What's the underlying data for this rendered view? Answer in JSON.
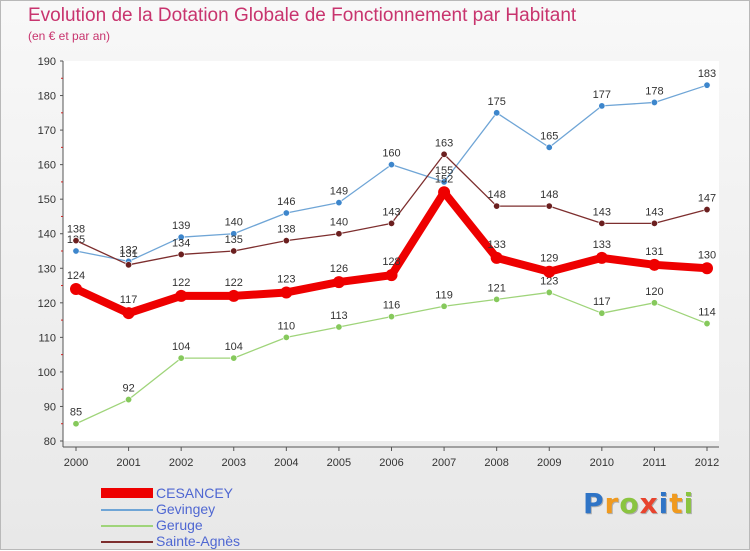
{
  "title": "Evolution de la Dotation Globale de Fonctionnement par Habitant",
  "subtitle": "(en € et par an)",
  "logo": {
    "text": "Proxiti",
    "letters": [
      {
        "ch": "P",
        "color": "#2f74c6"
      },
      {
        "ch": "r",
        "color": "#f09a1e"
      },
      {
        "ch": "o",
        "color": "#8ac43f"
      },
      {
        "ch": "x",
        "color": "#e8432d"
      },
      {
        "ch": "i",
        "color": "#2f74c6"
      },
      {
        "ch": "t",
        "color": "#f09a1e"
      },
      {
        "ch": "i",
        "color": "#8ac43f"
      }
    ]
  },
  "chart_data": {
    "type": "line",
    "title": "Evolution de la Dotation Globale de Fonctionnement par Habitant",
    "subtitle": "(en € et par an)",
    "xlabel": "",
    "ylabel": "",
    "x": [
      "2000",
      "2001",
      "2002",
      "2003",
      "2004",
      "2005",
      "2006",
      "2007",
      "2008",
      "2009",
      "2010",
      "2011",
      "2012"
    ],
    "ylim": [
      80,
      190
    ],
    "yticks": [
      80,
      90,
      100,
      110,
      120,
      130,
      140,
      150,
      160,
      170,
      180,
      190
    ],
    "grid": false,
    "legend_position": "bottom-left",
    "series": [
      {
        "name": "Gevingey",
        "color": "#6fa5d6",
        "marker": "#3d86cc",
        "values": [
          135,
          132,
          139,
          140,
          146,
          149,
          160,
          155,
          175,
          165,
          177,
          178,
          183
        ]
      },
      {
        "name": "Sainte-Agnès",
        "color": "#7d2e2e",
        "marker": "#6b1f1f",
        "values": [
          138,
          131,
          134,
          135,
          138,
          140,
          143,
          163,
          148,
          148,
          143,
          143,
          147
        ]
      },
      {
        "name": "Geruge",
        "color": "#9fd47a",
        "marker": "#86c95c",
        "values": [
          85,
          92,
          104,
          104,
          110,
          113,
          116,
          119,
          121,
          123,
          117,
          120,
          114
        ]
      },
      {
        "name": "CESANCEY",
        "color": "#ee0000",
        "marker": "#ee0000",
        "values": [
          124,
          117,
          122,
          122,
          123,
          126,
          128,
          152,
          133,
          129,
          133,
          131,
          130
        ]
      }
    ]
  },
  "legend": [
    {
      "name": "CESANCEY",
      "color": "#ee0000"
    },
    {
      "name": "Gevingey",
      "color": "#6fa5d6"
    },
    {
      "name": "Geruge",
      "color": "#9fd47a"
    },
    {
      "name": "Sainte-Agnès",
      "color": "#7d2e2e"
    }
  ]
}
